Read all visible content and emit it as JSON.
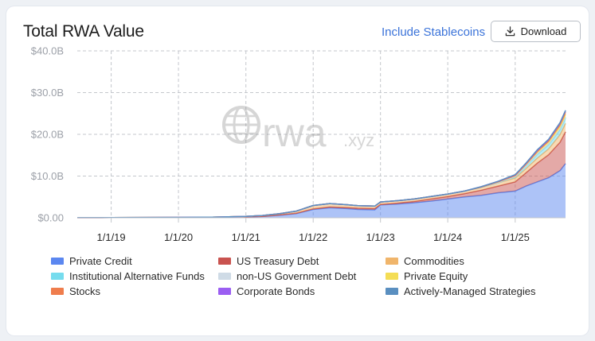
{
  "header": {
    "title": "Total RWA Value",
    "stablecoins_link": "Include Stablecoins",
    "download_label": "Download",
    "download_icon": "download-icon"
  },
  "watermark": {
    "text": "rwa",
    "suffix": ".xyz",
    "icon": "globe-icon"
  },
  "chart_data": {
    "type": "area",
    "stacked": true,
    "grid": true,
    "legend_position": "bottom",
    "y_ticks": [
      "$0.00",
      "$10.0B",
      "$20.0B",
      "$30.0B",
      "$40.0B"
    ],
    "x_ticks": [
      "1/1/19",
      "1/1/20",
      "1/1/21",
      "1/1/22",
      "1/1/23",
      "1/1/24",
      "1/1/25"
    ],
    "ylim": [
      0,
      40
    ],
    "y_unit": "B USD",
    "x_range": [
      "2018-07-01",
      "2025-10-01"
    ],
    "x": [
      "2018-07-01",
      "2019-01-01",
      "2019-07-01",
      "2020-01-01",
      "2020-07-01",
      "2021-01-01",
      "2021-04-01",
      "2021-07-01",
      "2021-10-01",
      "2022-01-01",
      "2022-04-01",
      "2022-07-01",
      "2022-09-01",
      "2022-12-01",
      "2023-01-01",
      "2023-04-01",
      "2023-07-01",
      "2023-10-01",
      "2024-01-01",
      "2024-04-01",
      "2024-07-01",
      "2024-10-01",
      "2025-01-01",
      "2025-03-01",
      "2025-05-01",
      "2025-07-01",
      "2025-09-01",
      "2025-10-01"
    ],
    "series": [
      {
        "name": "Private Credit",
        "color": "#5b87f0",
        "values": [
          0.02,
          0.03,
          0.05,
          0.07,
          0.1,
          0.2,
          0.3,
          0.6,
          1.0,
          2.0,
          2.4,
          2.2,
          2.0,
          1.9,
          3.1,
          3.3,
          3.6,
          4.0,
          4.5,
          5.0,
          5.4,
          6.0,
          6.4,
          7.6,
          8.6,
          9.6,
          11.3,
          13.0
        ]
      },
      {
        "name": "US Treasury Debt",
        "color": "#c9534f",
        "values": [
          0,
          0,
          0,
          0,
          0,
          0.02,
          0.05,
          0.08,
          0.1,
          0.15,
          0.2,
          0.25,
          0.3,
          0.3,
          0.1,
          0.2,
          0.3,
          0.5,
          0.6,
          0.8,
          1.2,
          1.6,
          2.2,
          3.2,
          4.5,
          5.5,
          6.8,
          7.6
        ]
      },
      {
        "name": "Commodities",
        "color": "#f0b56b",
        "values": [
          0.01,
          0.01,
          0.02,
          0.03,
          0.05,
          0.1,
          0.2,
          0.3,
          0.5,
          0.8,
          0.8,
          0.7,
          0.6,
          0.6,
          0.6,
          0.6,
          0.6,
          0.6,
          0.6,
          0.6,
          0.7,
          0.8,
          0.9,
          1.0,
          1.2,
          1.4,
          1.8,
          2.0
        ]
      },
      {
        "name": "Institutional Alternative Funds",
        "color": "#76dcee",
        "values": [
          0,
          0,
          0,
          0,
          0,
          0,
          0,
          0,
          0,
          0,
          0,
          0,
          0,
          0,
          0,
          0,
          0,
          0,
          0,
          0,
          0,
          0,
          0.3,
          0.6,
          0.9,
          1.0,
          1.2,
          1.3
        ]
      },
      {
        "name": "non-US Government Debt",
        "color": "#cfdbe6",
        "values": [
          0,
          0,
          0,
          0,
          0,
          0,
          0,
          0,
          0,
          0,
          0,
          0,
          0,
          0,
          0,
          0,
          0,
          0,
          0,
          0,
          0.05,
          0.1,
          0.1,
          0.15,
          0.2,
          0.2,
          0.25,
          0.3
        ]
      },
      {
        "name": "Private Equity",
        "color": "#f4dd55",
        "values": [
          0,
          0,
          0,
          0,
          0,
          0,
          0,
          0,
          0,
          0,
          0,
          0,
          0,
          0,
          0,
          0,
          0,
          0,
          0,
          0,
          0,
          0.1,
          0.2,
          0.3,
          0.4,
          0.5,
          0.6,
          0.6
        ]
      },
      {
        "name": "Stocks",
        "color": "#ef7d4d",
        "values": [
          0,
          0,
          0,
          0,
          0,
          0,
          0,
          0,
          0,
          0,
          0,
          0,
          0,
          0,
          0,
          0,
          0,
          0,
          0,
          0,
          0,
          0,
          0,
          0,
          0.1,
          0.2,
          0.4,
          0.5
        ]
      },
      {
        "name": "Corporate Bonds",
        "color": "#9b5ef2",
        "values": [
          0,
          0,
          0,
          0,
          0,
          0,
          0,
          0,
          0,
          0,
          0,
          0,
          0,
          0,
          0,
          0,
          0,
          0,
          0,
          0,
          0.1,
          0.15,
          0.2,
          0.25,
          0.3,
          0.3,
          0.35,
          0.35
        ]
      },
      {
        "name": "Actively-Managed Strategies",
        "color": "#5a8fc0",
        "values": [
          0,
          0,
          0,
          0,
          0,
          0,
          0,
          0,
          0,
          0,
          0,
          0,
          0,
          0,
          0,
          0,
          0,
          0,
          0,
          0,
          0,
          0,
          0.05,
          0.05,
          0.1,
          0.1,
          0.1,
          0.1
        ]
      }
    ]
  }
}
